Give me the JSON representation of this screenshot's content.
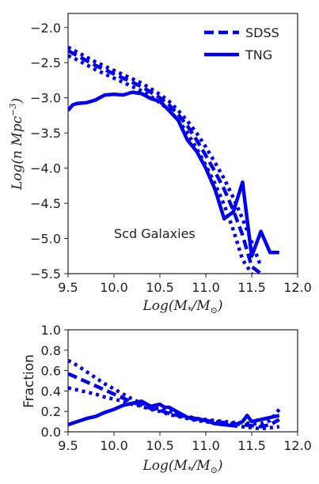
{
  "chart_data": [
    {
      "type": "line",
      "xlabel": "Log(M",
      "xlabel_sub": "*",
      "xlabel_mid": "/M",
      "xlabel_sub2": "⊙",
      "xlabel_end": ")",
      "ylabel": "Log(n Mpc",
      "ylabel_sup": "−3",
      "ylabel_end": ")",
      "xlim": [
        9.5,
        12.0
      ],
      "ylim": [
        -5.5,
        -1.8
      ],
      "xticks": [
        "9.5",
        "10.0",
        "10.5",
        "11.0",
        "11.5",
        "12.0"
      ],
      "xtick_values": [
        9.5,
        10.0,
        10.5,
        11.0,
        11.5,
        12.0
      ],
      "yticks": [
        "−2.0",
        "−2.5",
        "−3.0",
        "−3.5",
        "−4.0",
        "−4.5",
        "−5.0",
        "−5.5"
      ],
      "ytick_values": [
        -2.0,
        -2.5,
        -3.0,
        -3.5,
        -4.0,
        -4.5,
        -5.0,
        -5.5
      ],
      "annotation": "Scd Galaxies",
      "legend": {
        "placement": "top-right",
        "entries": [
          {
            "label": "SDSS",
            "style": "dashed"
          },
          {
            "label": "TNG",
            "style": "solid"
          }
        ]
      },
      "color": "#0000ee",
      "series": [
        {
          "name": "SDSS",
          "style": "dashed",
          "x": [
            9.5,
            9.6,
            9.7,
            9.8,
            9.9,
            10.0,
            10.1,
            10.2,
            10.3,
            10.4,
            10.5,
            10.6,
            10.7,
            10.8,
            10.9,
            11.0,
            11.1,
            11.2,
            11.3,
            11.4,
            11.5,
            11.6
          ],
          "y": [
            -2.33,
            -2.4,
            -2.47,
            -2.54,
            -2.6,
            -2.66,
            -2.72,
            -2.78,
            -2.84,
            -2.92,
            -3.0,
            -3.1,
            -3.24,
            -3.4,
            -3.6,
            -3.82,
            -4.05,
            -4.3,
            -4.6,
            -4.95,
            -5.4,
            -5.5
          ]
        },
        {
          "name": "SDSS_upper",
          "style": "dotted",
          "x": [
            9.5,
            9.6,
            9.7,
            9.8,
            9.9,
            10.0,
            10.1,
            10.2,
            10.3,
            10.4,
            10.5,
            10.6,
            10.7,
            10.8,
            10.9,
            11.0,
            11.1,
            11.2,
            11.3,
            11.4,
            11.5,
            11.6
          ],
          "y": [
            -2.28,
            -2.35,
            -2.42,
            -2.49,
            -2.55,
            -2.61,
            -2.67,
            -2.73,
            -2.79,
            -2.87,
            -2.95,
            -3.05,
            -3.18,
            -3.33,
            -3.5,
            -3.7,
            -3.92,
            -4.15,
            -4.42,
            -4.72,
            -5.05,
            -5.4
          ]
        },
        {
          "name": "SDSS_lower",
          "style": "dotted",
          "x": [
            9.5,
            9.6,
            9.7,
            9.8,
            9.9,
            10.0,
            10.1,
            10.2,
            10.3,
            10.4,
            10.5,
            10.6,
            10.7,
            10.8,
            10.9,
            11.0,
            11.1,
            11.2,
            11.3,
            11.4,
            11.5
          ],
          "y": [
            -2.4,
            -2.46,
            -2.53,
            -2.6,
            -2.66,
            -2.72,
            -2.78,
            -2.84,
            -2.9,
            -2.98,
            -3.07,
            -3.17,
            -3.32,
            -3.5,
            -3.72,
            -3.96,
            -4.22,
            -4.52,
            -4.88,
            -5.3,
            -5.5
          ]
        },
        {
          "name": "TNG",
          "style": "solid",
          "x": [
            9.5,
            9.55,
            9.6,
            9.7,
            9.75,
            9.8,
            9.9,
            10.0,
            10.1,
            10.15,
            10.2,
            10.3,
            10.4,
            10.5,
            10.6,
            10.7,
            10.8,
            10.9,
            11.0,
            11.1,
            11.2,
            11.3,
            11.4,
            11.5,
            11.6,
            11.7,
            11.8
          ],
          "y": [
            -3.18,
            -3.1,
            -3.08,
            -3.07,
            -3.05,
            -3.03,
            -2.96,
            -2.95,
            -2.96,
            -2.94,
            -2.92,
            -2.94,
            -3.01,
            -3.05,
            -3.18,
            -3.32,
            -3.6,
            -3.76,
            -4.0,
            -4.3,
            -4.72,
            -4.62,
            -4.2,
            -5.25,
            -4.9,
            -5.2,
            -5.2
          ]
        }
      ]
    },
    {
      "type": "line",
      "xlabel": "Log(M",
      "xlabel_sub": "*",
      "xlabel_mid": "/M",
      "xlabel_sub2": "⊙",
      "xlabel_end": ")",
      "ylabel": "Fraction",
      "xlim": [
        9.5,
        12.0
      ],
      "ylim": [
        0.0,
        1.0
      ],
      "xticks": [
        "9.5",
        "10.0",
        "10.5",
        "11.0",
        "11.5",
        "12.0"
      ],
      "xtick_values": [
        9.5,
        10.0,
        10.5,
        11.0,
        11.5,
        12.0
      ],
      "yticks": [
        "0.0",
        "0.2",
        "0.4",
        "0.6",
        "0.8",
        "1.0"
      ],
      "ytick_values": [
        0.0,
        0.2,
        0.4,
        0.6,
        0.8,
        1.0
      ],
      "color": "#0000ee",
      "series": [
        {
          "name": "SDSS",
          "style": "dashed",
          "x": [
            9.5,
            9.6,
            9.7,
            9.8,
            9.9,
            10.0,
            10.1,
            10.2,
            10.3,
            10.4,
            10.5,
            10.6,
            10.7,
            10.8,
            10.9,
            11.0,
            11.1,
            11.2,
            11.3,
            11.4,
            11.5,
            11.6,
            11.7,
            11.8
          ],
          "y": [
            0.57,
            0.53,
            0.49,
            0.45,
            0.41,
            0.37,
            0.33,
            0.29,
            0.26,
            0.23,
            0.21,
            0.18,
            0.16,
            0.14,
            0.12,
            0.11,
            0.1,
            0.09,
            0.08,
            0.07,
            0.06,
            0.05,
            0.07,
            0.12
          ]
        },
        {
          "name": "SDSS_upper",
          "style": "dotted",
          "x": [
            9.5,
            9.6,
            9.7,
            9.8,
            9.9,
            10.0,
            10.1,
            10.2,
            10.3,
            10.4,
            10.5,
            10.6,
            10.7,
            10.8,
            10.9,
            11.0,
            11.1,
            11.2,
            11.3,
            11.4,
            11.5,
            11.6,
            11.7,
            11.8
          ],
          "y": [
            0.7,
            0.65,
            0.59,
            0.53,
            0.47,
            0.42,
            0.37,
            0.32,
            0.28,
            0.25,
            0.22,
            0.2,
            0.17,
            0.15,
            0.13,
            0.12,
            0.11,
            0.1,
            0.09,
            0.09,
            0.08,
            0.08,
            0.11,
            0.22
          ]
        },
        {
          "name": "SDSS_lower",
          "style": "dotted",
          "x": [
            9.5,
            9.6,
            9.7,
            9.8,
            9.9,
            10.0,
            10.1,
            10.2,
            10.3,
            10.4,
            10.5,
            10.6,
            10.7,
            10.8,
            10.9,
            11.0,
            11.1,
            11.2,
            11.3,
            11.4,
            11.5,
            11.6,
            11.7,
            11.8
          ],
          "y": [
            0.43,
            0.41,
            0.39,
            0.37,
            0.34,
            0.32,
            0.3,
            0.27,
            0.25,
            0.22,
            0.2,
            0.17,
            0.15,
            0.13,
            0.11,
            0.1,
            0.08,
            0.07,
            0.06,
            0.05,
            0.04,
            0.03,
            0.04,
            0.05
          ]
        },
        {
          "name": "TNG",
          "style": "solid",
          "x": [
            9.5,
            9.6,
            9.7,
            9.8,
            9.9,
            10.0,
            10.1,
            10.2,
            10.3,
            10.4,
            10.5,
            10.55,
            10.6,
            10.7,
            10.8,
            10.9,
            11.0,
            11.1,
            11.2,
            11.3,
            11.4,
            11.45,
            11.5,
            11.6,
            11.7,
            11.8
          ],
          "y": [
            0.07,
            0.1,
            0.13,
            0.15,
            0.19,
            0.22,
            0.26,
            0.28,
            0.3,
            0.25,
            0.27,
            0.24,
            0.24,
            0.19,
            0.14,
            0.13,
            0.11,
            0.08,
            0.07,
            0.06,
            0.1,
            0.16,
            0.1,
            0.12,
            0.14,
            0.16
          ]
        }
      ]
    }
  ]
}
